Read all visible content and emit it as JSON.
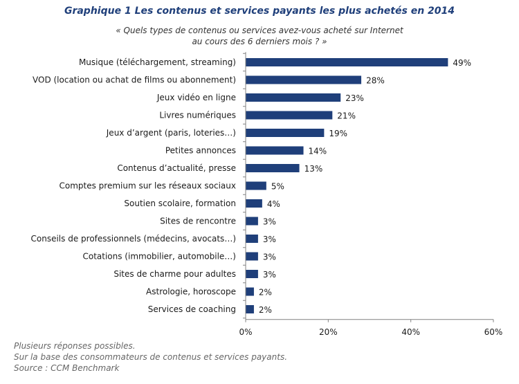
{
  "chart_data": {
    "type": "bar",
    "orientation": "horizontal",
    "title": "Graphique 1 Les contenus et services payants les plus achetés en 2014",
    "subtitle": [
      "« Quels types de contenus ou services avez-vous acheté sur Internet",
      "au cours des 6 derniers mois ? »"
    ],
    "categories": [
      "Musique (téléchargement, streaming)",
      "VOD (location ou achat de films ou abonnement)",
      "Jeux vidéo en ligne",
      "Livres numériques",
      "Jeux d’argent (paris, loteries…)",
      "Petites annonces",
      "Contenus d’actualité, presse",
      "Comptes premium sur les réseaux sociaux",
      "Soutien scolaire, formation",
      "Sites de rencontre",
      "Conseils de professionnels  (médecins, avocats…)",
      "Cotations (immobilier, automobile…)",
      "Sites de charme pour adultes",
      "Astrologie, horoscope",
      "Services de coaching"
    ],
    "values": [
      49,
      28,
      23,
      21,
      19,
      14,
      13,
      5,
      4,
      3,
      3,
      3,
      3,
      2,
      2
    ],
    "value_labels": [
      "49%",
      "28%",
      "23%",
      "21%",
      "19%",
      "14%",
      "13%",
      "5%",
      "4%",
      "3%",
      "3%",
      "3%",
      "3%",
      "2%",
      "2%"
    ],
    "xlim": [
      0,
      60
    ],
    "xticks": [
      0,
      20,
      40,
      60
    ],
    "xtick_labels": [
      "0%",
      "20%",
      "40%",
      "60%"
    ],
    "bar_color": "#1f3f7a",
    "grid": false,
    "legend": "none"
  },
  "notes": [
    "Plusieurs réponses possibles.",
    "Sur la base des consommateurs de contenus et services payants.",
    "Source : CCM Benchmark"
  ]
}
